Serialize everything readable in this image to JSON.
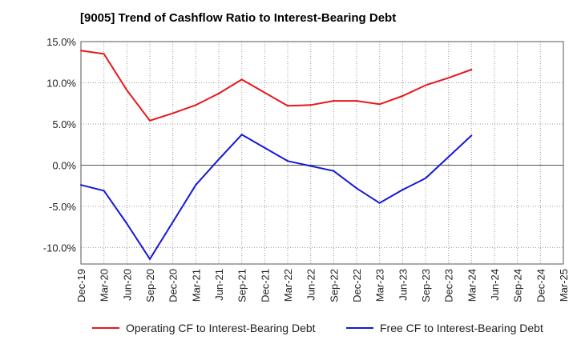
{
  "chart_data": {
    "type": "line",
    "title": "[9005]  Trend of Cashflow Ratio to Interest-Bearing Debt",
    "xlabel": "",
    "ylabel": "",
    "categories": [
      "Dec-19",
      "Mar-20",
      "Jun-20",
      "Sep-20",
      "Dec-20",
      "Mar-21",
      "Jun-21",
      "Sep-21",
      "Dec-21",
      "Mar-22",
      "Jun-22",
      "Sep-22",
      "Dec-22",
      "Mar-23",
      "Jun-23",
      "Sep-23",
      "Dec-23",
      "Mar-24",
      "Jun-24",
      "Sep-24",
      "Dec-24",
      "Mar-25"
    ],
    "ylim": [
      -12,
      15
    ],
    "yticks": [
      15,
      10,
      5,
      0,
      -5,
      -10
    ],
    "ytick_labels": [
      "15.0%",
      "10.0%",
      "5.0%",
      "0.0%",
      "-5.0%",
      "-10.0%"
    ],
    "grid": true,
    "legend_position": "bottom",
    "series": [
      {
        "name": "Operating CF to Interest-Bearing Debt",
        "color": "#e8161b",
        "values": [
          13.9,
          13.5,
          9.1,
          5.4,
          6.3,
          7.3,
          8.7,
          10.4,
          8.8,
          7.2,
          7.3,
          7.8,
          7.8,
          7.4,
          8.4,
          9.7,
          10.6,
          11.6,
          null,
          null,
          null,
          null
        ]
      },
      {
        "name": "Free CF to Interest-Bearing Debt",
        "color": "#1518d6",
        "values": [
          -2.4,
          -3.1,
          -7.1,
          -11.4,
          -6.9,
          -2.4,
          0.7,
          3.7,
          2.1,
          0.5,
          -0.1,
          -0.7,
          -2.8,
          -4.6,
          -3.0,
          -1.6,
          1.0,
          3.6,
          null,
          null,
          null,
          null
        ]
      }
    ]
  }
}
